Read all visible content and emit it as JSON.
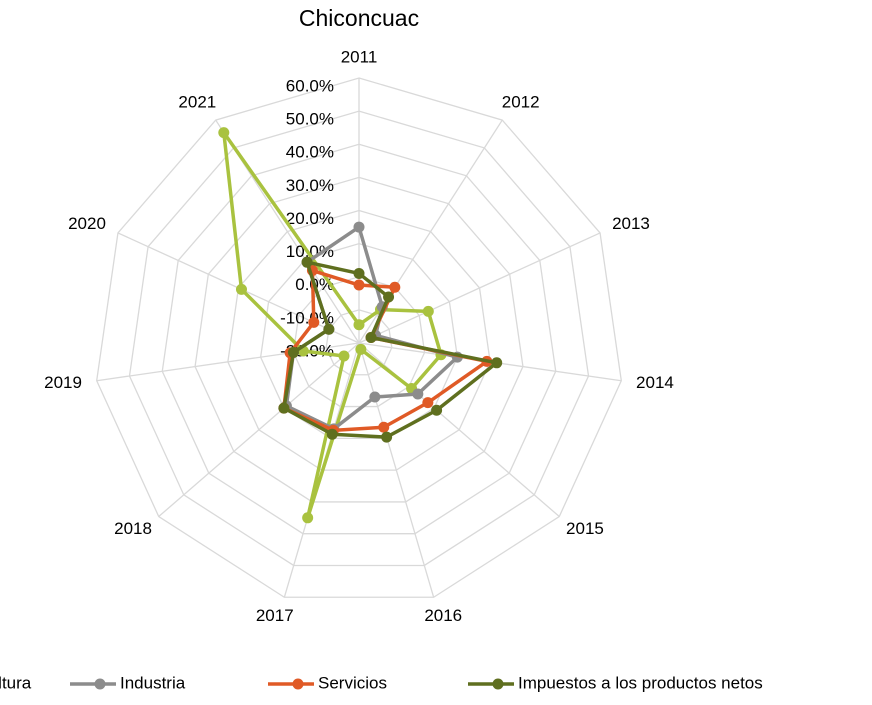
{
  "chart_data": {
    "type": "radar",
    "title": "Chiconcuac",
    "categories": [
      "2011",
      "2012",
      "2013",
      "2014",
      "2015",
      "2016",
      "2017",
      "2018",
      "2019",
      "2020",
      "2021"
    ],
    "ylim": [
      -20,
      60
    ],
    "yticks": [
      {
        "value": -20,
        "label": "-20.0%"
      },
      {
        "value": -10,
        "label": "-10.0%"
      },
      {
        "value": 0,
        "label": "0.0%"
      },
      {
        "value": 10,
        "label": "10.0%"
      },
      {
        "value": 20,
        "label": "20.0%"
      },
      {
        "value": 30,
        "label": "30.0%"
      },
      {
        "value": 40,
        "label": "40.0%"
      },
      {
        "value": 50,
        "label": "50.0%"
      },
      {
        "value": 60,
        "label": "60.0%"
      }
    ],
    "grid": true,
    "legend": "bottom",
    "series": [
      {
        "name": "Agricultura",
        "color": "#a9c23f",
        "values": [
          -14.5,
          -8,
          3,
          5,
          1,
          -18,
          35,
          -14,
          -3,
          19,
          55.5
        ]
      },
      {
        "name": "Industria",
        "color": "#8c8c8c",
        "values": [
          15,
          -7,
          -14.5,
          10,
          3.5,
          -3,
          7,
          9,
          0,
          -10,
          9
        ]
      },
      {
        "name": "Servicios",
        "color": "#e05a26",
        "values": [
          -2.5,
          0,
          -16,
          19,
          7.5,
          6.5,
          7.5,
          10,
          1,
          -5,
          6
        ]
      },
      {
        "name": "Impuestos a los productos netos",
        "color": "#5f6f1f",
        "values": [
          1,
          -3.5,
          -16,
          22,
          11,
          9.6,
          8.7,
          10,
          0,
          -10,
          9
        ]
      }
    ]
  }
}
